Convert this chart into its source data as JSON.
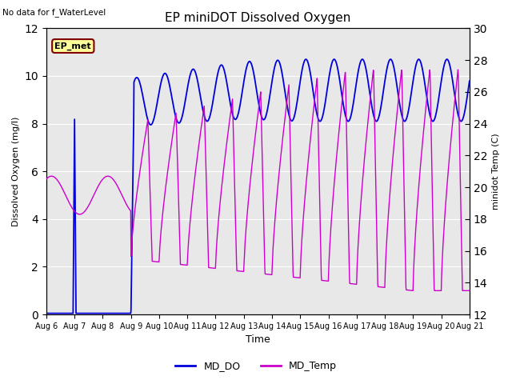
{
  "title": "EP miniDOT Dissolved Oxygen",
  "top_left_text": "No data for f_WaterLevel",
  "xlabel": "Time",
  "ylabel_left": "Dissolved Oxygen (mg/l)",
  "ylabel_right": "minidot Temp (C)",
  "ylim_left": [
    0,
    12
  ],
  "ylim_right": [
    12,
    30
  ],
  "xlim": [
    0,
    15
  ],
  "xtick_positions": [
    0,
    1,
    2,
    3,
    4,
    5,
    6,
    7,
    8,
    9,
    10,
    11,
    12,
    13,
    14,
    15
  ],
  "xtick_labels": [
    "Aug 6",
    "Aug 7",
    "Aug 8",
    "Aug 9",
    "Aug 10",
    "Aug 11",
    "Aug 12",
    "Aug 13",
    "Aug 14",
    "Aug 15",
    "Aug 16",
    "Aug 17",
    "Aug 18",
    "Aug 19",
    "Aug 20",
    "Aug 21"
  ],
  "yticks_left": [
    0,
    2,
    4,
    6,
    8,
    10,
    12
  ],
  "yticks_right": [
    12,
    14,
    16,
    18,
    20,
    22,
    24,
    26,
    28,
    30
  ],
  "bg_color": "#e8e8e8",
  "band_dark": "#d8d8d8",
  "band_light": "#ebebeb",
  "grid_color": "#ffffff",
  "do_color": "#0000dd",
  "temp_color": "#cc00cc",
  "ep_met_box_color": "#ffff99",
  "ep_met_border_color": "#800000",
  "ep_met_text": "EP_met",
  "legend_do": "MD_DO",
  "legend_temp": "MD_Temp",
  "figsize": [
    6.4,
    4.8
  ],
  "dpi": 100
}
